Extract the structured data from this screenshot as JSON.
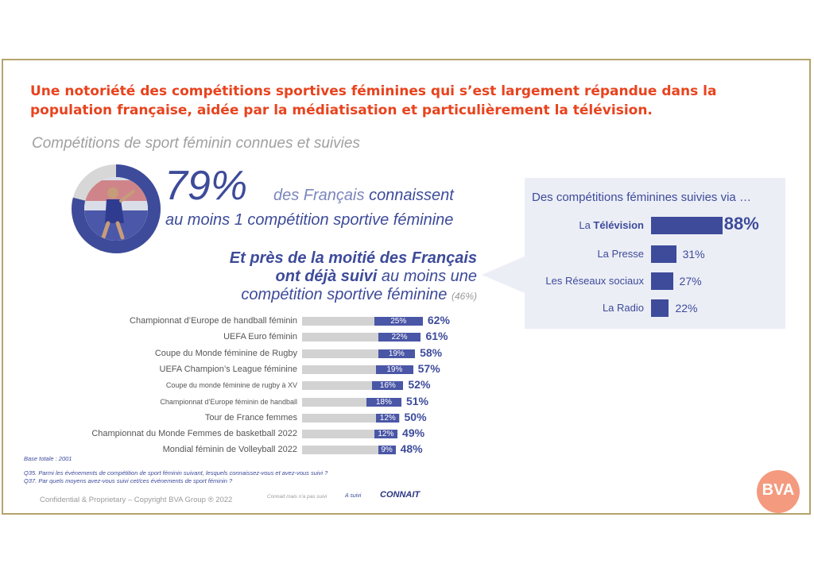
{
  "slide": {
    "title": "Une notoriété des compétitions sportives féminines qui s’est largement répandue dans la population française, aidée par la médiatisation et particulièrement la télévision.",
    "subtitle": "Compétitions de sport féminin connues et suivies",
    "headline_pct": "79%",
    "headline_known_a": "des Français",
    "headline_known_b": "connaissent",
    "headline_known_line2": "au moins 1 compétition sportive féminine",
    "followed_line1": "Et près de la moitié des Français",
    "followed_line2_bold": "ont déjà suivi",
    "followed_line2_rest": "au moins une",
    "followed_line3": "compétition sportive féminine",
    "followed_pct": "(46%)",
    "donut_known_fraction": 0.79,
    "colors": {
      "accent": "#e8431e",
      "navy": "#3d4b9a",
      "bar_gray": "#d2d2d2",
      "frame": "#b5a36b"
    }
  },
  "media": {
    "title": "Des compétitions féminines suivies via …",
    "items": [
      {
        "label_prefix": "La ",
        "label_bold": "Télévision",
        "value": 88,
        "display": "88%"
      },
      {
        "label_prefix": "La Presse",
        "label_bold": "",
        "value": 31,
        "display": "31%"
      },
      {
        "label_prefix": "Les Réseaux sociaux",
        "label_bold": "",
        "value": 27,
        "display": "27%"
      },
      {
        "label_prefix": "La Radio",
        "label_bold": "",
        "value": 22,
        "display": "22%"
      }
    ]
  },
  "chart_data": {
    "type": "bar",
    "orientation": "horizontal",
    "categories": [
      "Championnat d’Europe de handball féminin",
      "UEFA Euro féminin",
      "Coupe du Monde féminine de Rugby",
      "UEFA Champion’s League féminine",
      "Coupe du monde féminine de rugby à XV",
      "Championnat d’Europe féminin de handball",
      "Tour de France femmes",
      "Championnat du Monde Femmes de basketball 2022",
      "Mondial féminin de Volleyball 2022"
    ],
    "series": [
      {
        "name": "CONNAIT",
        "values": [
          62,
          61,
          58,
          57,
          52,
          51,
          50,
          49,
          48
        ]
      },
      {
        "name": "A suivi",
        "values": [
          25,
          22,
          19,
          19,
          16,
          18,
          12,
          12,
          9
        ]
      }
    ],
    "legend": [
      "Connait mais n'a pas suivi",
      "A suivi",
      "CONNAIT"
    ],
    "legend_placement": "bottom"
  },
  "footer": {
    "base": "Base totale : 2001",
    "q35": "Q35. Parmi les événements de compétition de sport féminin suivant, lesquels connaissez-vous et avez-vous suivi ?",
    "q37": "Q37. Par quels moyens avez-vous suivi cet/ces événements de sport féminin ?",
    "copyright": "Confidential & Proprietary – Copyright BVA Group ®  2022",
    "logo": "BVA"
  }
}
